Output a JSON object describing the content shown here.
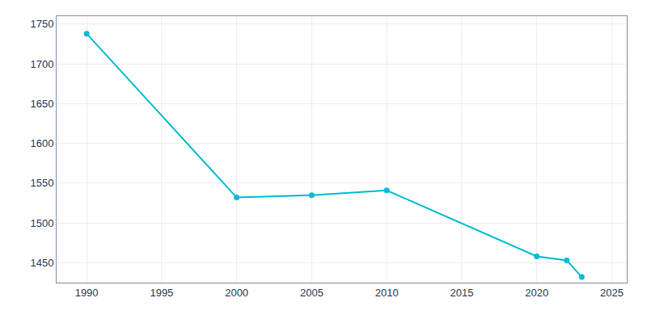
{
  "chart_data": {
    "type": "line",
    "x": [
      1990,
      2000,
      2005,
      2010,
      2020,
      2022,
      2023
    ],
    "values": [
      1738,
      1532,
      1535,
      1541,
      1458,
      1453,
      1432
    ],
    "color": "#00BCD4",
    "marker": "circle",
    "xlim": [
      1988,
      2026
    ],
    "ylim": [
      1425,
      1760
    ],
    "xticks": [
      1990,
      1995,
      2000,
      2005,
      2010,
      2015,
      2020,
      2025
    ],
    "yticks": [
      1450,
      1500,
      1550,
      1600,
      1650,
      1700,
      1750
    ],
    "grid": true
  }
}
